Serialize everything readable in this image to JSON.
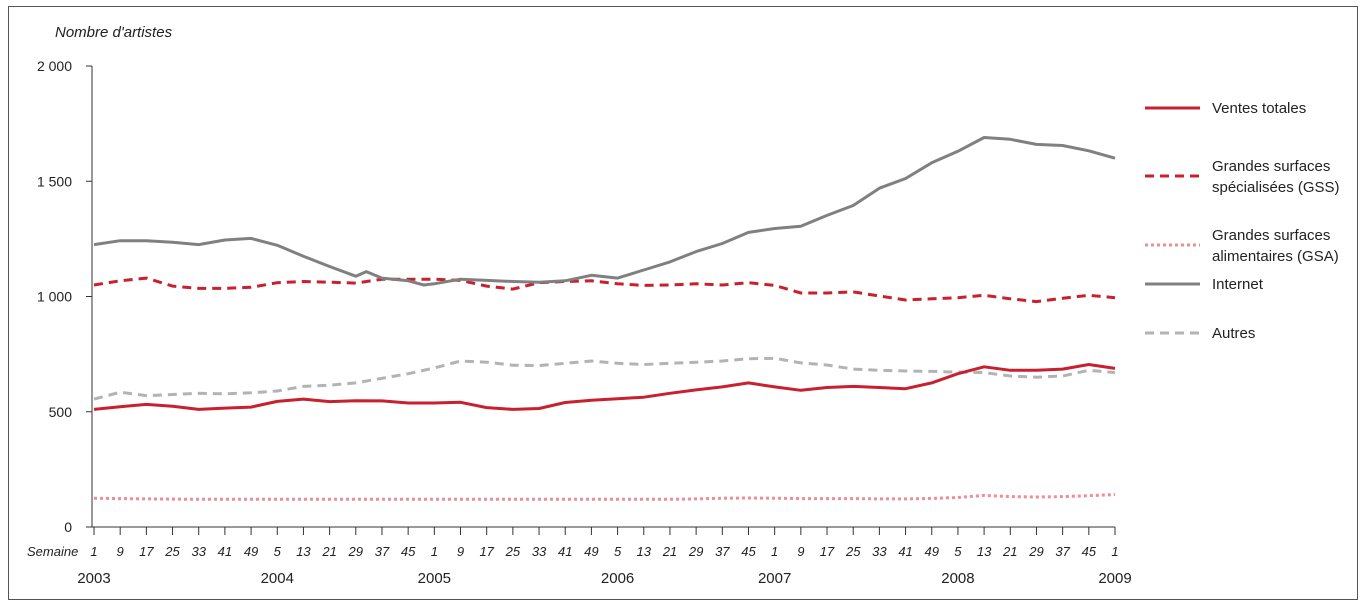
{
  "chart_data": {
    "type": "line",
    "ylabel": "Nombre d'artistes",
    "xlabel": "Semaine",
    "ylim": [
      0,
      2000
    ],
    "yticks": [
      0,
      500,
      1000,
      1500,
      2000
    ],
    "ytick_labels": [
      "0",
      "500",
      "1 000",
      "1 500",
      "2 000"
    ],
    "x_tick_labels": [
      "1",
      "9",
      "17",
      "25",
      "33",
      "41",
      "49",
      "5",
      "13",
      "21",
      "29",
      "37",
      "45",
      "1",
      "9",
      "17",
      "25",
      "33",
      "41",
      "49",
      "5",
      "13",
      "21",
      "29",
      "37",
      "45",
      "1",
      "9",
      "17",
      "25",
      "33",
      "41",
      "49",
      "5",
      "13",
      "21",
      "29",
      "37",
      "45",
      "1"
    ],
    "years": [
      {
        "label": "2003",
        "tick_index": 0
      },
      {
        "label": "2004",
        "tick_index": 7
      },
      {
        "label": "2005",
        "tick_index": 13
      },
      {
        "label": "2006",
        "tick_index": 20
      },
      {
        "label": "2007",
        "tick_index": 26
      },
      {
        "label": "2008",
        "tick_index": 33
      },
      {
        "label": "2009",
        "tick_index": 39
      }
    ],
    "grid": false,
    "legend_position": "right",
    "series": [
      {
        "name": "Ventes totales",
        "color": "#c8202e",
        "style": "solid",
        "points": [
          [
            0,
            510
          ],
          [
            1,
            522
          ],
          [
            2,
            532
          ],
          [
            3,
            524
          ],
          [
            4,
            510
          ],
          [
            5,
            516
          ],
          [
            6,
            520
          ],
          [
            7,
            545
          ],
          [
            8,
            555
          ],
          [
            9,
            544
          ],
          [
            10,
            548
          ],
          [
            11,
            547
          ],
          [
            12,
            538
          ],
          [
            13,
            538
          ],
          [
            14,
            541
          ],
          [
            15,
            518
          ],
          [
            16,
            510
          ],
          [
            17,
            514
          ],
          [
            18,
            540
          ],
          [
            19,
            550
          ],
          [
            20,
            556
          ],
          [
            21,
            563
          ],
          [
            22,
            580
          ],
          [
            23,
            595
          ],
          [
            24,
            608
          ],
          [
            25,
            625
          ],
          [
            26,
            608
          ],
          [
            27,
            593
          ],
          [
            28,
            605
          ],
          [
            29,
            610
          ],
          [
            30,
            605
          ],
          [
            31,
            600
          ],
          [
            32,
            625
          ],
          [
            33,
            665
          ],
          [
            34,
            695
          ],
          [
            35,
            680
          ],
          [
            36,
            680
          ],
          [
            37,
            685
          ],
          [
            38,
            705
          ],
          [
            39,
            688
          ]
        ]
      },
      {
        "name": "Grandes surfaces spécialisées (GSS)",
        "color": "#c8202e",
        "style": "dashed",
        "points": [
          [
            0,
            1050
          ],
          [
            1,
            1068
          ],
          [
            2,
            1080
          ],
          [
            3,
            1045
          ],
          [
            4,
            1035
          ],
          [
            5,
            1035
          ],
          [
            6,
            1040
          ],
          [
            7,
            1060
          ],
          [
            8,
            1065
          ],
          [
            9,
            1062
          ],
          [
            10,
            1058
          ],
          [
            11,
            1075
          ],
          [
            12,
            1075
          ],
          [
            13,
            1075
          ],
          [
            14,
            1070
          ],
          [
            15,
            1045
          ],
          [
            16,
            1032
          ],
          [
            17,
            1060
          ],
          [
            18,
            1065
          ],
          [
            19,
            1068
          ],
          [
            20,
            1055
          ],
          [
            21,
            1048
          ],
          [
            22,
            1050
          ],
          [
            23,
            1055
          ],
          [
            24,
            1050
          ],
          [
            25,
            1060
          ],
          [
            26,
            1048
          ],
          [
            27,
            1015
          ],
          [
            28,
            1015
          ],
          [
            29,
            1020
          ],
          [
            30,
            1002
          ],
          [
            31,
            985
          ],
          [
            32,
            990
          ],
          [
            33,
            995
          ],
          [
            34,
            1005
          ],
          [
            35,
            990
          ],
          [
            36,
            978
          ],
          [
            37,
            992
          ],
          [
            38,
            1005
          ],
          [
            39,
            995
          ]
        ]
      },
      {
        "name": "Grandes surfaces alimentaires (GSA)",
        "color": "#ef8d96",
        "style": "dotted",
        "points": [
          [
            0,
            125
          ],
          [
            1,
            123
          ],
          [
            2,
            122
          ],
          [
            3,
            121
          ],
          [
            4,
            120
          ],
          [
            5,
            120
          ],
          [
            6,
            120
          ],
          [
            7,
            120
          ],
          [
            8,
            120
          ],
          [
            9,
            120
          ],
          [
            10,
            120
          ],
          [
            11,
            120
          ],
          [
            12,
            120
          ],
          [
            13,
            120
          ],
          [
            14,
            120
          ],
          [
            15,
            120
          ],
          [
            16,
            120
          ],
          [
            17,
            120
          ],
          [
            18,
            120
          ],
          [
            19,
            120
          ],
          [
            20,
            120
          ],
          [
            21,
            120
          ],
          [
            22,
            120
          ],
          [
            23,
            122
          ],
          [
            24,
            125
          ],
          [
            25,
            126
          ],
          [
            26,
            125
          ],
          [
            27,
            123
          ],
          [
            28,
            123
          ],
          [
            29,
            123
          ],
          [
            30,
            122
          ],
          [
            31,
            122
          ],
          [
            32,
            124
          ],
          [
            33,
            128
          ],
          [
            34,
            137
          ],
          [
            35,
            132
          ],
          [
            36,
            130
          ],
          [
            37,
            132
          ],
          [
            38,
            136
          ],
          [
            39,
            141
          ]
        ]
      },
      {
        "name": "Internet",
        "color": "#808080",
        "style": "solid",
        "points": [
          [
            0,
            1225
          ],
          [
            1,
            1242
          ],
          [
            2,
            1242
          ],
          [
            3,
            1235
          ],
          [
            4,
            1225
          ],
          [
            5,
            1245
          ],
          [
            6,
            1252
          ],
          [
            7,
            1222
          ],
          [
            8,
            1175
          ],
          [
            9,
            1130
          ],
          [
            10,
            1088
          ],
          [
            10.4,
            1108
          ],
          [
            11,
            1080
          ],
          [
            12,
            1068
          ],
          [
            12.6,
            1050
          ],
          [
            13,
            1055
          ],
          [
            14,
            1075
          ],
          [
            15,
            1070
          ],
          [
            16,
            1065
          ],
          [
            17,
            1062
          ],
          [
            18,
            1068
          ],
          [
            19,
            1092
          ],
          [
            20,
            1080
          ],
          [
            21,
            1115
          ],
          [
            22,
            1150
          ],
          [
            23,
            1195
          ],
          [
            24,
            1230
          ],
          [
            25,
            1278
          ],
          [
            26,
            1295
          ],
          [
            27,
            1305
          ],
          [
            28,
            1352
          ],
          [
            29,
            1395
          ],
          [
            30,
            1470
          ],
          [
            31,
            1512
          ],
          [
            32,
            1580
          ],
          [
            33,
            1630
          ],
          [
            34,
            1690
          ],
          [
            35,
            1682
          ],
          [
            36,
            1660
          ],
          [
            37,
            1655
          ],
          [
            38,
            1632
          ],
          [
            39,
            1600
          ]
        ]
      },
      {
        "name": "Autres",
        "color": "#b3b3b3",
        "style": "dashed",
        "points": [
          [
            0,
            555
          ],
          [
            1,
            585
          ],
          [
            2,
            570
          ],
          [
            3,
            575
          ],
          [
            4,
            580
          ],
          [
            5,
            578
          ],
          [
            6,
            582
          ],
          [
            7,
            590
          ],
          [
            8,
            610
          ],
          [
            9,
            615
          ],
          [
            10,
            625
          ],
          [
            11,
            645
          ],
          [
            12,
            665
          ],
          [
            13,
            690
          ],
          [
            14,
            720
          ],
          [
            15,
            715
          ],
          [
            16,
            702
          ],
          [
            17,
            700
          ],
          [
            18,
            710
          ],
          [
            19,
            720
          ],
          [
            20,
            710
          ],
          [
            21,
            705
          ],
          [
            22,
            710
          ],
          [
            23,
            715
          ],
          [
            24,
            720
          ],
          [
            25,
            730
          ],
          [
            26,
            732
          ],
          [
            27,
            712
          ],
          [
            28,
            703
          ],
          [
            29,
            685
          ],
          [
            30,
            680
          ],
          [
            31,
            677
          ],
          [
            32,
            675
          ],
          [
            33,
            672
          ],
          [
            34,
            670
          ],
          [
            35,
            655
          ],
          [
            36,
            650
          ],
          [
            37,
            655
          ],
          [
            38,
            680
          ],
          [
            39,
            670
          ]
        ]
      }
    ]
  }
}
